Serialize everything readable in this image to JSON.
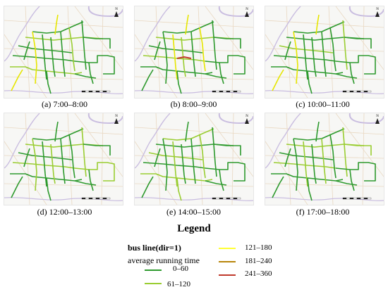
{
  "panels": [
    {
      "id": "a",
      "caption": "(a) 7:00–8:00"
    },
    {
      "id": "b",
      "caption": "(b) 8:00–9:00"
    },
    {
      "id": "c",
      "caption": "(c) 10:00–11:00"
    },
    {
      "id": "d",
      "caption": "(d) 12:00–13:00"
    },
    {
      "id": "e",
      "caption": "(e) 14:00–15:00"
    },
    {
      "id": "f",
      "caption": "(f) 17:00–18:00"
    }
  ],
  "north_label": "N",
  "legend": {
    "title": "Legend",
    "heading": "bus line(dir=1)",
    "subheading": "average running time",
    "items": [
      {
        "label": "0–60",
        "color": "#2e9a2e"
      },
      {
        "label": "61–120",
        "color": "#9acd32"
      },
      {
        "label": "121–180",
        "color": "#ffff33"
      },
      {
        "label": "181–240",
        "color": "#b8860b"
      },
      {
        "label": "241–360",
        "color": "#c0392b"
      }
    ]
  },
  "colors": {
    "base": "#2e9a2e",
    "light": "#9acd32",
    "yellow": "#e6e600",
    "red": "#c0392b",
    "river": "#c9bde0",
    "road": "#e9d8c2"
  }
}
